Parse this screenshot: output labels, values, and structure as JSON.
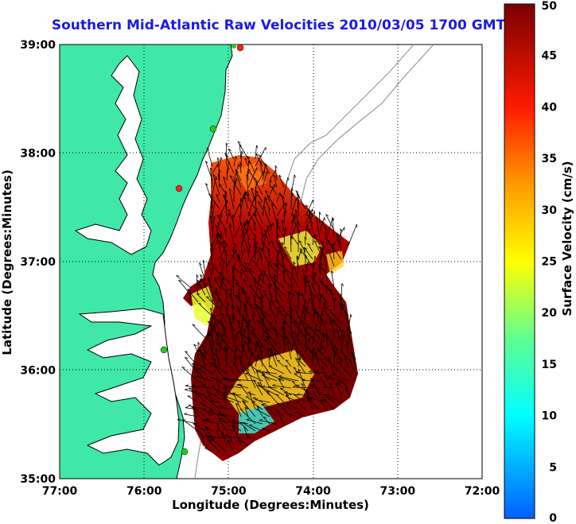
{
  "title": "Southern Mid-Atlantic Raw Velocities 2010/03/05 1700 GMT",
  "x_axis": {
    "label": "Longitude (Degrees:Minutes)",
    "ticks": [
      "77:00",
      "76:00",
      "75:00",
      "74:00",
      "73:00",
      "72:00"
    ]
  },
  "y_axis": {
    "label": "Latitude (Degrees:Minutes)",
    "ticks": [
      "39:00",
      "38:00",
      "37:00",
      "36:00",
      "35:00"
    ]
  },
  "colorbar": {
    "label": "Surface Velocity (cm/s)",
    "ticks": [
      "50",
      "45",
      "40",
      "35",
      "30",
      "25",
      "20",
      "15",
      "10",
      "5",
      "0"
    ],
    "range": [
      0,
      50
    ]
  },
  "colors": {
    "land": "#3fe8a6",
    "title": "#1a1ae6",
    "velocity_high": "#8b0000",
    "velocity_low": "#1e90ff"
  },
  "legend_markers": {
    "station_colors": [
      "#ff2020",
      "#22cc22"
    ]
  }
}
